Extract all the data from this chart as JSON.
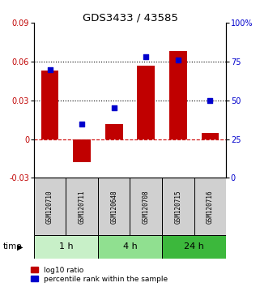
{
  "title": "GDS3433 / 43585",
  "samples": [
    "GSM120710",
    "GSM120711",
    "GSM120648",
    "GSM120708",
    "GSM120715",
    "GSM120716"
  ],
  "log10_ratio": [
    0.053,
    -0.018,
    0.012,
    0.057,
    0.068,
    0.005
  ],
  "percentile_rank": [
    70,
    35,
    45,
    78,
    76,
    50
  ],
  "time_groups": [
    {
      "label": "1 h",
      "samples": [
        0,
        1
      ],
      "color": "#c8f0c8"
    },
    {
      "label": "4 h",
      "samples": [
        2,
        3
      ],
      "color": "#90e090"
    },
    {
      "label": "24 h",
      "samples": [
        4,
        5
      ],
      "color": "#3cb83c"
    }
  ],
  "bar_color": "#c00000",
  "dot_color": "#0000cc",
  "ylim_left": [
    -0.03,
    0.09
  ],
  "ylim_right": [
    0,
    100
  ],
  "yticks_left": [
    -0.03,
    0,
    0.03,
    0.06,
    0.09
  ],
  "yticks_right": [
    0,
    25,
    50,
    75,
    100
  ],
  "hline_dotted_values": [
    0.03,
    0.06
  ],
  "hline_dashed_value": 0,
  "dashed_color": "#cc0000",
  "legend_labels": [
    "log10 ratio",
    "percentile rank within the sample"
  ],
  "bar_width": 0.55,
  "dot_size": 18
}
